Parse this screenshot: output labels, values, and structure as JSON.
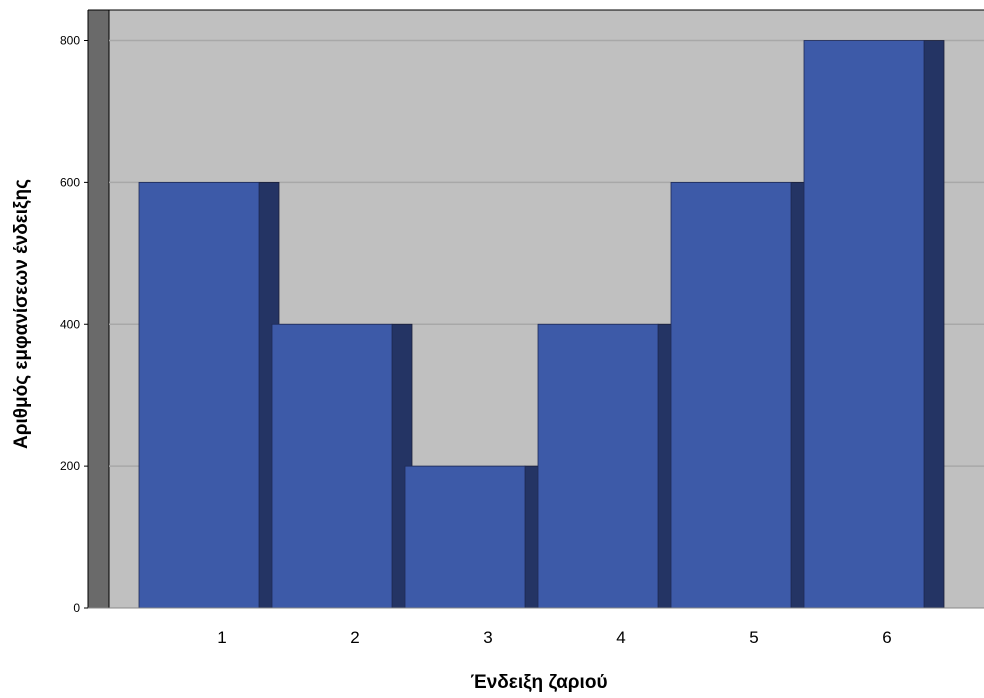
{
  "chart_data": {
    "type": "bar",
    "style": "3d",
    "categories": [
      "1",
      "2",
      "3",
      "4",
      "5",
      "6"
    ],
    "values": [
      600,
      400,
      200,
      400,
      600,
      800
    ],
    "xlabel": "Ένδειξη ζαριού",
    "ylabel": "Αριθμός εμφανίσεων ένδειξης",
    "ylim": [
      0,
      843
    ],
    "yticks": [
      "0",
      "200",
      "400",
      "600",
      "800"
    ],
    "grid": true,
    "colors": {
      "bar_front": "#3d5aa8",
      "bar_side": "#243464",
      "plot_background": "#c0c0c0",
      "gridline": "#a8a8a8",
      "left_wall": "#6a6a6a"
    }
  }
}
